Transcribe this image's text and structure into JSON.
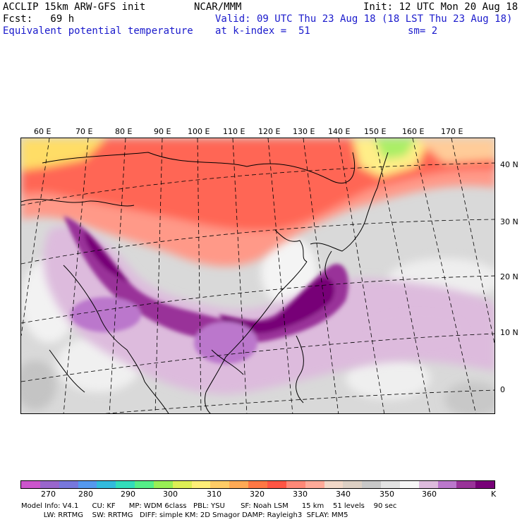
{
  "header": {
    "line1_left": "ACCLIP 15km ARW-GFS init",
    "line2_left": "Fcst:   69 h",
    "line3_left": "Equivalent potential temperature",
    "center_line1": "NCAR/MMM",
    "init": "Init: 12 UTC Mon 20 Aug 18",
    "valid": "Valid: 09 UTC Thu 23 Aug 18 (18 LST Thu 23 Aug 18)",
    "kindex": "at k-index =  51",
    "sm": "sm= 2"
  },
  "map": {
    "lon_labels": [
      "60 E",
      "70 E",
      "80 E",
      "90 E",
      "100 E",
      "110 E",
      "120 E",
      "130 E",
      "140 E",
      "150 E",
      "160 E",
      "170 E"
    ],
    "lat_labels": [
      "40 N",
      "30 N",
      "20 N",
      "10 N",
      "0"
    ]
  },
  "colorbar": {
    "colors": [
      "#cc55cc",
      "#9966cc",
      "#7777dd",
      "#5599ee",
      "#33bbdd",
      "#33ddbb",
      "#55ee88",
      "#99ee55",
      "#ddee55",
      "#ffee77",
      "#ffcc66",
      "#ffaa55",
      "#ff7744",
      "#ff5544",
      "#ff8877",
      "#ffaa99",
      "#f2d8c8",
      "#ddd0c4",
      "#c8c8c8",
      "#e2e2e2",
      "#f6f6f6",
      "#ddbbdd",
      "#bb77cc",
      "#993399",
      "#770077"
    ],
    "labels": [
      "270",
      "280",
      "290",
      "300",
      "310",
      "320",
      "330",
      "340",
      "350",
      "360",
      "K"
    ]
  },
  "footer": {
    "line1": "Model Info: V4.1      CU: KF      MP: WDM 6class   PBL: YSU       SF: Noah LSM      15 km    51 levels    90 sec",
    "line2": "          LW: RRTMG    SW: RRTMG   DIFF: simple KM: 2D Smagor DAMP: Rayleigh3  SFLAY: MM5"
  }
}
